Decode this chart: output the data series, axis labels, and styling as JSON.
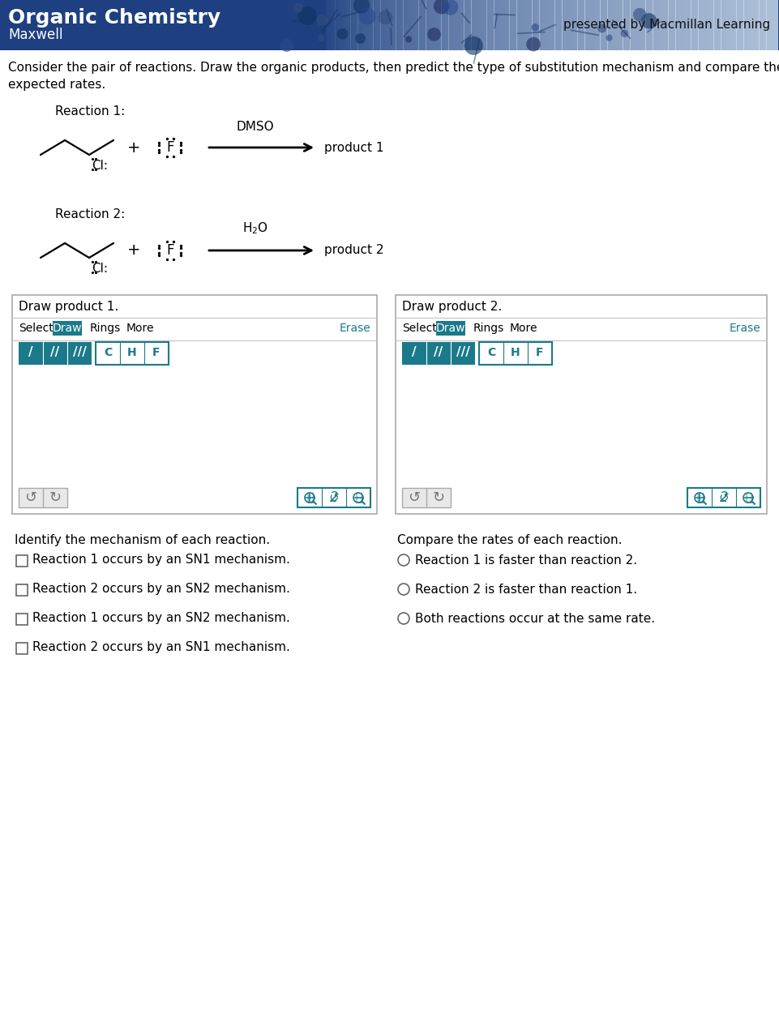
{
  "header_title": "Organic Chemistry",
  "header_subtitle": "Maxwell",
  "header_right": "presented by Macmillan Learning",
  "intro_text": "Consider the pair of reactions. Draw the organic products, then predict the type of substitution mechanism and compare the\nexpected rates.",
  "reaction1_label": "Reaction 1:",
  "reaction1_solvent": "DMSO",
  "reaction1_product": "product 1",
  "reaction2_label": "Reaction 2:",
  "reaction2_solvent": "H₂O",
  "reaction2_product": "product 2",
  "draw_product1": "Draw product 1.",
  "draw_product2": "Draw product 2.",
  "identify_label": "Identify the mechanism of each reaction.",
  "compare_label": "Compare the rates of each reaction.",
  "checkboxes": [
    "Reaction 1 occurs by an SΝ1 mechanism.",
    "Reaction 2 occurs by an SΝ2 mechanism.",
    "Reaction 1 occurs by an SΝ2 mechanism.",
    "Reaction 2 occurs by an SΝ1 mechanism."
  ],
  "radios": [
    "Reaction 1 is faster than reaction 2.",
    "Reaction 2 is faster than reaction 1.",
    "Both reactions occur at the same rate."
  ],
  "teal_color": "#1a7a8a",
  "bg_white": "#ffffff",
  "text_color": "#000000",
  "header_blue": "#1e3a6e"
}
